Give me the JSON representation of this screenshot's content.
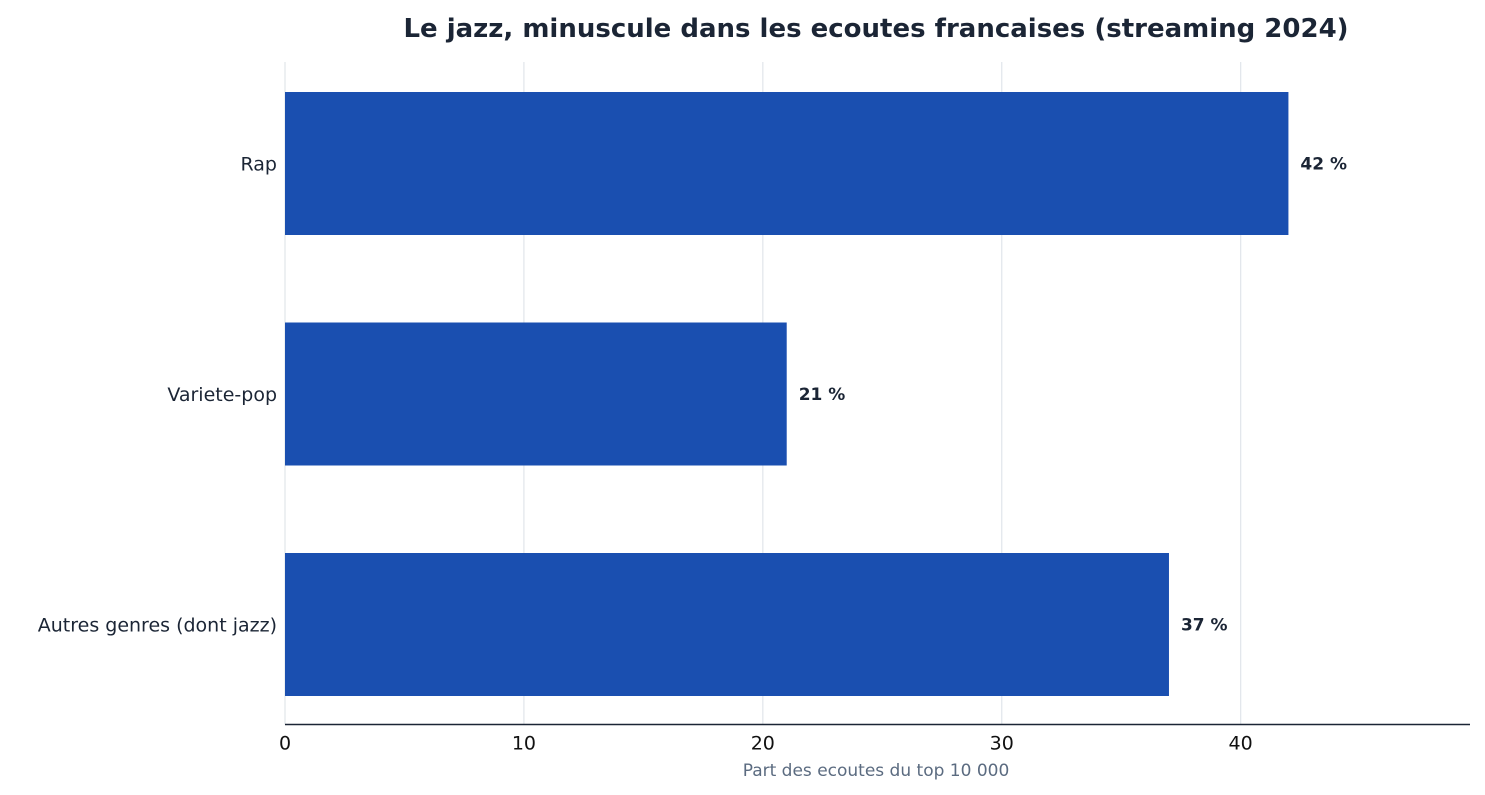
{
  "colors": {
    "bar": "#1a4fb0",
    "text": "#1b2535",
    "grid": "#e3e7ec",
    "axis": "#1b2535",
    "xlabel": "#5b6b80",
    "tick": "#111111"
  },
  "chart_data": {
    "type": "bar",
    "orientation": "horizontal",
    "title": "Le jazz, minuscule dans les ecoutes francaises (streaming 2024)",
    "xlabel": "Part des ecoutes du top 10 000",
    "ylabel": "",
    "categories": [
      "Rap",
      "Variete-pop",
      "Autres genres (dont jazz)"
    ],
    "values": [
      42,
      21,
      37
    ],
    "value_labels": [
      "42 %",
      "21 %",
      "37 %"
    ],
    "xlim": [
      0,
      49.6
    ],
    "xticks": [
      0,
      10,
      20,
      30,
      40
    ],
    "grid": "vertical",
    "legend": "none"
  }
}
